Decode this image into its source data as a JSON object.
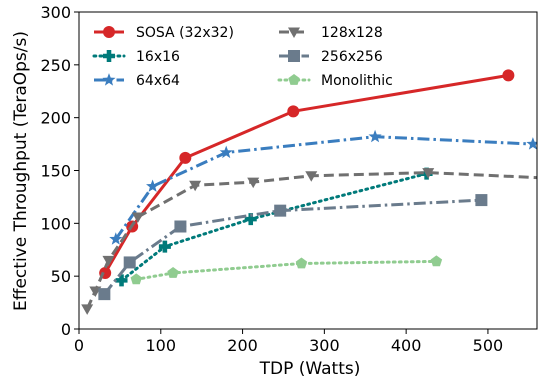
{
  "chart_data": {
    "type": "line",
    "xlabel": "TDP (Watts)",
    "ylabel": "Effective Throughput (TeraOps/s)",
    "xlim": [
      0,
      560
    ],
    "ylim": [
      0,
      300
    ],
    "xticks": [
      0,
      100,
      200,
      300,
      400,
      500
    ],
    "yticks": [
      0,
      50,
      100,
      150,
      200,
      250,
      300
    ],
    "grid": false,
    "legend_position": "top-left",
    "series": [
      {
        "name": "SOSA (32x32)",
        "color": "#d62728",
        "line_style": "solid",
        "marker": "circle",
        "points": [
          [
            32,
            53
          ],
          [
            65,
            97
          ],
          [
            130,
            162
          ],
          [
            262,
            206
          ],
          [
            525,
            240
          ]
        ]
      },
      {
        "name": "16x16",
        "color": "#007a7a",
        "line_style": "dotted",
        "marker": "plus",
        "points": [
          [
            52,
            46
          ],
          [
            105,
            78
          ],
          [
            210,
            104
          ],
          [
            425,
            147
          ]
        ]
      },
      {
        "name": "64x64",
        "color": "#3a7dbf",
        "line_style": "dashdot",
        "marker": "star",
        "points": [
          [
            45,
            85
          ],
          [
            90,
            135
          ],
          [
            180,
            167
          ],
          [
            362,
            182
          ],
          [
            555,
            175
          ]
        ]
      },
      {
        "name": "128x128",
        "color": "#707070",
        "line_style": "dashed",
        "marker": "triangle-down",
        "points": [
          [
            10,
            19
          ],
          [
            20,
            36
          ],
          [
            36,
            65
          ],
          [
            72,
            106
          ],
          [
            142,
            136
          ],
          [
            213,
            139
          ],
          [
            284,
            145
          ],
          [
            427,
            148
          ],
          [
            568,
            143
          ]
        ]
      },
      {
        "name": "256x256",
        "color": "#6a7b8c",
        "line_style": "dashdot",
        "marker": "square",
        "points": [
          [
            31,
            33
          ],
          [
            62,
            63
          ],
          [
            124,
            97
          ],
          [
            246,
            112
          ],
          [
            492,
            122
          ]
        ]
      },
      {
        "name": "Monolithic",
        "color": "#90cc90",
        "line_style": "dotted",
        "marker": "pentagon",
        "points": [
          [
            70,
            47
          ],
          [
            115,
            53
          ],
          [
            272,
            62
          ],
          [
            437,
            64
          ]
        ]
      }
    ]
  }
}
